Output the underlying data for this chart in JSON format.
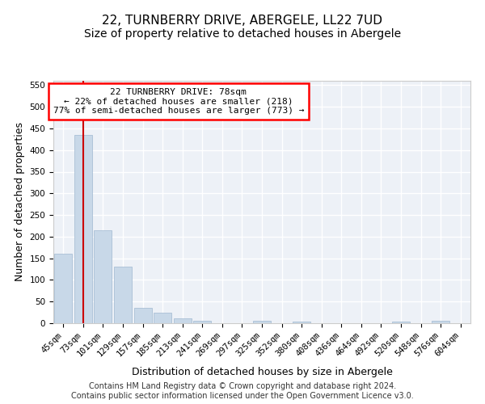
{
  "title_line1": "22, TURNBERRY DRIVE, ABERGELE, LL22 7UD",
  "title_line2": "Size of property relative to detached houses in Abergele",
  "xlabel": "Distribution of detached houses by size in Abergele",
  "ylabel": "Number of detached properties",
  "bin_labels": [
    "45sqm",
    "73sqm",
    "101sqm",
    "129sqm",
    "157sqm",
    "185sqm",
    "213sqm",
    "241sqm",
    "269sqm",
    "297sqm",
    "325sqm",
    "352sqm",
    "380sqm",
    "408sqm",
    "436sqm",
    "464sqm",
    "492sqm",
    "520sqm",
    "548sqm",
    "576sqm",
    "604sqm"
  ],
  "bar_values": [
    160,
    435,
    215,
    130,
    35,
    25,
    11,
    5,
    0,
    0,
    5,
    0,
    4,
    0,
    0,
    0,
    0,
    4,
    0,
    5,
    0
  ],
  "bar_color": "#c8d8e8",
  "bar_edge_color": "#a0b8d0",
  "property_line_bin_index": 1,
  "annotation_text": "22 TURNBERRY DRIVE: 78sqm\n← 22% of detached houses are smaller (218)\n77% of semi-detached houses are larger (773) →",
  "annotation_box_color": "white",
  "annotation_box_edge_color": "red",
  "vline_color": "#cc0000",
  "ylim": [
    0,
    560
  ],
  "yticks": [
    0,
    50,
    100,
    150,
    200,
    250,
    300,
    350,
    400,
    450,
    500,
    550
  ],
  "background_color": "#edf1f7",
  "grid_color": "white",
  "footer_text": "Contains HM Land Registry data © Crown copyright and database right 2024.\nContains public sector information licensed under the Open Government Licence v3.0.",
  "title_fontsize": 11,
  "subtitle_fontsize": 10,
  "tick_fontsize": 7.5,
  "ylabel_fontsize": 9,
  "xlabel_fontsize": 9,
  "footer_fontsize": 7
}
